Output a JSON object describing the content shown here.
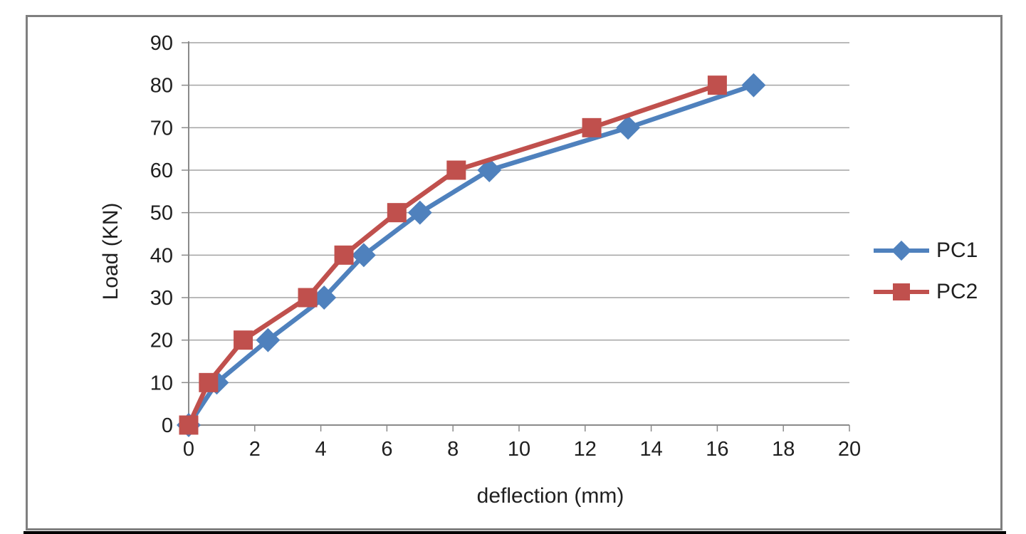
{
  "chart_data": {
    "type": "line",
    "title": "",
    "xlabel": "deflection (mm)",
    "ylabel": "Load (KN)",
    "xlim": [
      0,
      20
    ],
    "ylim": [
      0,
      90
    ],
    "x_ticks": [
      0,
      2,
      4,
      6,
      8,
      10,
      12,
      14,
      16,
      18,
      20
    ],
    "y_ticks": [
      0,
      10,
      20,
      30,
      40,
      50,
      60,
      70,
      80,
      90
    ],
    "grid": "horizontal",
    "legend_position": "right-middle",
    "series": [
      {
        "name": "PC1",
        "color": "#4f81bd",
        "marker": "diamond",
        "x": [
          0,
          0.85,
          2.4,
          4.1,
          5.3,
          7.0,
          9.1,
          13.3,
          17.1
        ],
        "y": [
          0,
          10,
          20,
          30,
          40,
          50,
          60,
          70,
          80
        ]
      },
      {
        "name": "PC2",
        "color": "#c0504d",
        "marker": "square",
        "x": [
          0,
          0.6,
          1.65,
          3.6,
          4.7,
          6.3,
          8.1,
          12.2,
          16.0
        ],
        "y": [
          0,
          10,
          20,
          30,
          40,
          50,
          60,
          70,
          80
        ]
      }
    ]
  },
  "legend": {
    "items": [
      {
        "label": "PC1"
      },
      {
        "label": "PC2"
      }
    ]
  }
}
